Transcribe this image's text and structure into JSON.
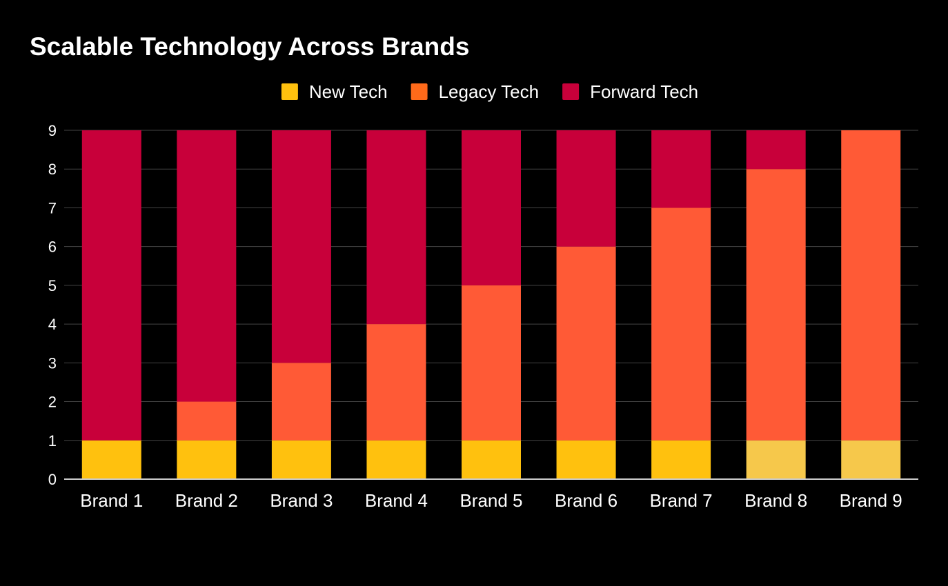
{
  "chart_data": {
    "type": "bar",
    "stacked": true,
    "title": "Scalable Technology Across Brands",
    "xlabel": "",
    "ylabel": "",
    "ylim": [
      0,
      9
    ],
    "yticks": [
      0,
      1,
      2,
      3,
      4,
      5,
      6,
      7,
      8,
      9
    ],
    "grid": true,
    "legend_position": "top-center",
    "categories": [
      "Brand 1",
      "Brand 2",
      "Brand 3",
      "Brand 4",
      "Brand 5",
      "Brand 6",
      "Brand 7",
      "Brand 8",
      "Brand 9"
    ],
    "series": [
      {
        "name": "New Tech",
        "color": "#FFC10E",
        "values": [
          1,
          1,
          1,
          1,
          1,
          1,
          1,
          1,
          1
        ],
        "point_colors": [
          "#FFC10E",
          "#FFC10E",
          "#FFC10E",
          "#FFC10E",
          "#FFC10E",
          "#FFC10E",
          "#FFC10E",
          "#F6C84B",
          "#F6C84B"
        ]
      },
      {
        "name": "Legacy Tech",
        "color": "#FF6A1A",
        "bar_color": "#FF5A36",
        "values": [
          0,
          1,
          2,
          3,
          4,
          5,
          6,
          7,
          8
        ]
      },
      {
        "name": "Forward Tech",
        "color": "#C8003A",
        "values": [
          8,
          7,
          6,
          5,
          4,
          3,
          2,
          1,
          0
        ]
      }
    ]
  }
}
